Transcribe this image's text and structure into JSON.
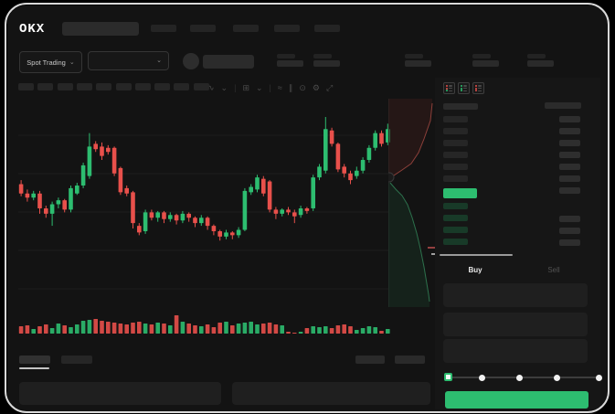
{
  "app": {
    "logo_text": "OKX"
  },
  "colors": {
    "up_green": "#2dbd70",
    "down_red": "#e8504b",
    "buy_button_green": "#2dbd70",
    "bid_placeholder_green": "#183a28",
    "background": "#131313",
    "panel_background": "#161616",
    "skeleton_gray": "#282828"
  },
  "header": {
    "nav_placeholder_count": 5,
    "market_selector": {
      "label": "Spot Trading",
      "chevron": "⌄"
    },
    "pair_selector": {
      "chevron": "⌄"
    },
    "stat_placeholder_count": 5
  },
  "toolbar": {
    "interval_placeholder_count": 10,
    "icons": [
      {
        "name": "candle-style-icon",
        "glyph": "∿"
      },
      {
        "name": "candle-style-chevron-icon",
        "glyph": "⌄"
      },
      {
        "name": "toolbar-divider",
        "glyph": "|"
      },
      {
        "name": "overlay-icon",
        "glyph": "⊞"
      },
      {
        "name": "overlay-chevron-icon",
        "glyph": "⌄"
      },
      {
        "name": "toolbar-divider",
        "glyph": "|"
      },
      {
        "name": "indicators-icon",
        "glyph": "≈"
      },
      {
        "name": "compare-icon",
        "glyph": "∥"
      },
      {
        "name": "snapshot-icon",
        "glyph": "⊙"
      },
      {
        "name": "chart-settings-icon",
        "glyph": "⚙"
      },
      {
        "name": "fullscreen-icon",
        "glyph": "⤢"
      }
    ]
  },
  "order_book": {
    "view_icons": [
      {
        "name": "book-both-sides-icon",
        "rows": [
          "#e8504b",
          "#e8504b",
          "#2dbd70",
          "#2dbd70"
        ]
      },
      {
        "name": "book-bids-only-icon",
        "rows": [
          "#2dbd70",
          "#2dbd70",
          "#2dbd70",
          "#2dbd70"
        ]
      },
      {
        "name": "book-asks-only-icon",
        "rows": [
          "#e8504b",
          "#e8504b",
          "#e8504b",
          "#e8504b"
        ]
      }
    ],
    "ask_row_count": 6,
    "bid_row_count": 4,
    "last_price_highlight_color": "#2dbd70"
  },
  "trade_panel": {
    "tabs": [
      {
        "label": "Buy",
        "active": true
      },
      {
        "label": "Sell",
        "active": false
      }
    ],
    "inputs": [
      {
        "name": "price-input"
      },
      {
        "name": "amount-input"
      },
      {
        "name": "total-input"
      }
    ],
    "slider": {
      "stop_count": 5,
      "active_stop_index": 0
    },
    "submit_label": ""
  },
  "bottom_panel": {
    "tab_placeholder_count": 2,
    "right_placeholder_count": 2,
    "active_tab_index": 0
  },
  "chart_data": {
    "type": "candlestick",
    "title": "",
    "xlabel": "",
    "ylabel": "",
    "ylim": [
      0,
      100
    ],
    "grid": true,
    "gridline_count": 5,
    "legend": "none",
    "candles_ohlc": [
      [
        50,
        53,
        41,
        43
      ],
      [
        43,
        46,
        37,
        40
      ],
      [
        40,
        45,
        38,
        43
      ],
      [
        43,
        45,
        28,
        32
      ],
      [
        32,
        34,
        25,
        28
      ],
      [
        28,
        37,
        19,
        35
      ],
      [
        35,
        40,
        32,
        38
      ],
      [
        38,
        39,
        29,
        31
      ],
      [
        31,
        49,
        29,
        47
      ],
      [
        43,
        51,
        42,
        49
      ],
      [
        49,
        66,
        47,
        64
      ],
      [
        56,
        88,
        54,
        78
      ],
      [
        80,
        82,
        74,
        76
      ],
      [
        78,
        81,
        68,
        71
      ],
      [
        77,
        79,
        72,
        74
      ],
      [
        77,
        78,
        56,
        58
      ],
      [
        62,
        63,
        42,
        44
      ],
      [
        47,
        49,
        41,
        43
      ],
      [
        44,
        45,
        17,
        21
      ],
      [
        19,
        21,
        12,
        14
      ],
      [
        15,
        31,
        13,
        29
      ],
      [
        29,
        31,
        23,
        25
      ],
      [
        25,
        30,
        22,
        29
      ],
      [
        29,
        30,
        21,
        24
      ],
      [
        24,
        29,
        22,
        27
      ],
      [
        27,
        28,
        20,
        23
      ],
      [
        23,
        30,
        21,
        28
      ],
      [
        28,
        29,
        22,
        25
      ],
      [
        25,
        26,
        18,
        21
      ],
      [
        21,
        27,
        19,
        25
      ],
      [
        25,
        26,
        16,
        19
      ],
      [
        19,
        20,
        12,
        15
      ],
      [
        15,
        16,
        8,
        11
      ],
      [
        11,
        16,
        9,
        14
      ],
      [
        14,
        15,
        9,
        12
      ],
      [
        12,
        18,
        10,
        16
      ],
      [
        16,
        47,
        15,
        45
      ],
      [
        44,
        50,
        42,
        48
      ],
      [
        46,
        57,
        44,
        55
      ],
      [
        54,
        56,
        41,
        43
      ],
      [
        52,
        53,
        29,
        31
      ],
      [
        31,
        33,
        24,
        28
      ],
      [
        28,
        32,
        26,
        31
      ],
      [
        31,
        33,
        27,
        29
      ],
      [
        29,
        31,
        21,
        26
      ],
      [
        27,
        34,
        25,
        32
      ],
      [
        32,
        33,
        28,
        30
      ],
      [
        32,
        57,
        30,
        55
      ],
      [
        55,
        65,
        53,
        63
      ],
      [
        60,
        100,
        58,
        91
      ],
      [
        90,
        92,
        78,
        80
      ],
      [
        80,
        81,
        59,
        61
      ],
      [
        63,
        65,
        55,
        58
      ],
      [
        58,
        60,
        50,
        53
      ],
      [
        56,
        63,
        54,
        60
      ],
      [
        60,
        70,
        58,
        68
      ],
      [
        68,
        79,
        66,
        77
      ],
      [
        77,
        90,
        75,
        88
      ],
      [
        88,
        90,
        78,
        80
      ],
      [
        81,
        95,
        79,
        91
      ]
    ],
    "volume": [
      8,
      9,
      5,
      8,
      10,
      6,
      11,
      9,
      7,
      10,
      14,
      15,
      16,
      14,
      13,
      12,
      11,
      10,
      12,
      13,
      11,
      10,
      12,
      11,
      9,
      20,
      13,
      11,
      9,
      8,
      10,
      7,
      12,
      13,
      9,
      11,
      12,
      13,
      10,
      11,
      12,
      10,
      9,
      2,
      1,
      2,
      6,
      8,
      7,
      8,
      6,
      9,
      10,
      8,
      4,
      6,
      8,
      7,
      3,
      5
    ],
    "depth": {
      "asks_curve": [
        [
          48,
          5
        ],
        [
          46,
          24
        ],
        [
          39,
          44
        ],
        [
          33,
          59
        ],
        [
          25,
          71
        ],
        [
          15,
          78
        ],
        [
          6,
          84
        ],
        [
          2,
          88
        ]
      ],
      "bids_curve": [
        [
          2,
          92
        ],
        [
          8,
          99
        ],
        [
          15,
          106
        ],
        [
          21,
          116
        ],
        [
          26,
          130
        ],
        [
          31,
          147
        ],
        [
          35,
          164
        ],
        [
          39,
          184
        ],
        [
          42,
          202
        ],
        [
          44,
          214
        ],
        [
          45,
          222
        ]
      ]
    }
  }
}
